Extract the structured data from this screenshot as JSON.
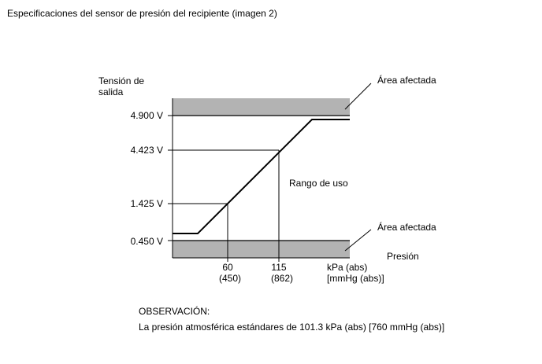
{
  "title": "Especificaciones del sensor de presión del recipiente (imagen 2)",
  "y_axis_label": [
    "Tensión de",
    "salida"
  ],
  "y_ticks": [
    "4.900 V",
    "4.423 V",
    "1.425 V",
    "0.450 V"
  ],
  "x_ticks": [
    {
      "kpa": "60",
      "mmhg": "(450)"
    },
    {
      "kpa": "115",
      "mmhg": "(862)"
    }
  ],
  "x_unit": {
    "kpa": "kPa (abs)",
    "mmhg": "[mmHg (abs)]"
  },
  "x_axis_label": "Presión",
  "range_label": "Rango de uso",
  "affected_area_top": "Área afectada",
  "affected_area_bottom": "Área afectada",
  "note_heading": "OBSERVACIÓN:",
  "note_text": "La presión atmosférica estándares de 101.3 kPa (abs) [760 mmHg (abs)]",
  "colors": {
    "band_fill": "#b3b3b3",
    "line": "#000000"
  },
  "chart_data": {
    "type": "line",
    "xlabel": "Presión",
    "ylabel": "Tensión de salida",
    "x_unit": "kPa (abs) [mmHg (abs)]",
    "y_unit": "V",
    "marked_points": [
      {
        "x_kpa": 60,
        "x_mmhg": 450,
        "y_v": 1.425
      },
      {
        "x_kpa": 115,
        "x_mmhg": 862,
        "y_v": 4.423
      }
    ],
    "y_limits_v": [
      0.45,
      4.9
    ],
    "bands": [
      "Área afectada",
      "Área afectada"
    ],
    "annotation": "Rango de uso"
  }
}
